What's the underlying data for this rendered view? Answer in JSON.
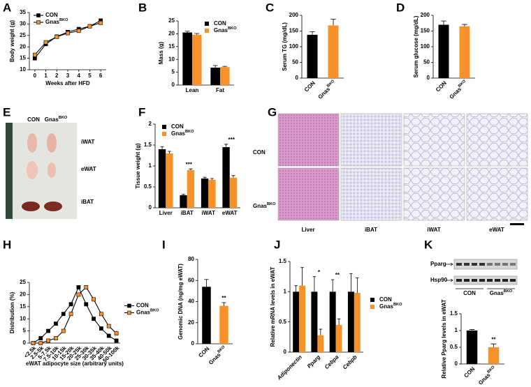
{
  "panel_letters": [
    "A",
    "B",
    "C",
    "D",
    "E",
    "F",
    "G",
    "H",
    "I",
    "J",
    "K"
  ],
  "chart_data": [
    {
      "type": "line",
      "x": [
        0,
        1,
        2,
        3,
        4,
        5,
        6
      ],
      "xlim": [
        -0.5,
        6.5
      ],
      "xticks": [
        0,
        1,
        2,
        3,
        4,
        5,
        6
      ],
      "xlabel": "Weeks after HFD",
      "ylabel": "Body weight (g)",
      "ylim": [
        10,
        35
      ],
      "yticks": [
        10,
        15,
        20,
        25,
        30,
        35
      ],
      "legend": "upper left",
      "series": [
        {
          "name": "CON",
          "color": "#000000",
          "values": [
            15,
            21.2,
            24.5,
            26.5,
            27.8,
            29,
            31.5
          ]
        },
        {
          "name": "GnasBKO",
          "color": "#f7922a",
          "values": [
            16.5,
            22,
            24.4,
            26,
            27,
            29,
            30.5
          ]
        }
      ]
    },
    {
      "type": "bar",
      "categories": [
        "Lean",
        "Fat"
      ],
      "ylabel": "Mass (g)",
      "ylim": [
        0,
        25
      ],
      "yticks": [
        0,
        5,
        10,
        15,
        20,
        25
      ],
      "legend": "upper right",
      "series": [
        {
          "name": "CON",
          "color": "#000000",
          "values": [
            20.5,
            6.8
          ],
          "errors": [
            0.5,
            0.8
          ]
        },
        {
          "name": "GnasBKO",
          "color": "#f7922a",
          "values": [
            19.6,
            7
          ],
          "errors": [
            0.5,
            0.3
          ]
        }
      ]
    },
    {
      "type": "bar",
      "categories": [
        "CON",
        "GnasBKO"
      ],
      "colors": [
        "#000000",
        "#f7922a"
      ],
      "values": [
        138,
        168
      ],
      "errors": [
        10,
        20
      ],
      "ylabel": "Serum TG (mg/dL)",
      "ylim": [
        0,
        200
      ],
      "yticks": [
        0,
        50,
        100,
        150,
        200
      ]
    },
    {
      "type": "bar",
      "categories": [
        "CON",
        "GnasBKO"
      ],
      "colors": [
        "#000000",
        "#f7922a"
      ],
      "values": [
        170,
        165
      ],
      "errors": [
        12,
        6
      ],
      "ylabel": "Serum glucose (mg/dL)",
      "ylim": [
        0,
        200
      ],
      "yticks": [
        0,
        50,
        100,
        150,
        200
      ]
    },
    {
      "type": "bar",
      "categories": [
        "Liver",
        "iBAT",
        "iWAT",
        "eWAT"
      ],
      "ylabel": "Tissue weight (g)",
      "ylim": [
        0,
        2
      ],
      "yticks": [
        0,
        0.5,
        1,
        1.5,
        2
      ],
      "legend": "upper left",
      "series": [
        {
          "name": "CON",
          "color": "#000000",
          "values": [
            1.4,
            0.3,
            0.7,
            1.45
          ],
          "errors": [
            0.06,
            0.02,
            0.03,
            0.07
          ]
        },
        {
          "name": "GnasBKO",
          "color": "#f7922a",
          "values": [
            1.3,
            0.9,
            0.67,
            0.72
          ],
          "errors": [
            0.05,
            0.03,
            0.03,
            0.05
          ]
        }
      ],
      "annotations": [
        {
          "text": "***",
          "category": "iBAT"
        },
        {
          "text": "***",
          "category": "eWAT"
        }
      ]
    },
    {
      "type": "line",
      "categories": [
        "<2.5k",
        "2.5-5k",
        "5-7.5k",
        "7.5-10k",
        "10-15k",
        "15-20k",
        "20-25k",
        "25-30k",
        "30-35k",
        "35-40k",
        "40-50k",
        "50-100k"
      ],
      "xlabel": "eWAT adipocyte size (arbitrary units)",
      "ylabel": "Distribution (%)",
      "ylim": [
        0,
        25
      ],
      "yticks": [
        0,
        5,
        10,
        15,
        20,
        25
      ],
      "legend": "right",
      "series": [
        {
          "name": "CON",
          "color": "#000000",
          "values": [
            0,
            2,
            5,
            8,
            12,
            16,
            23,
            16,
            10,
            6,
            3,
            1
          ]
        },
        {
          "name": "GnasBKO",
          "color": "#f7922a",
          "values": [
            0,
            0,
            1,
            2,
            5,
            12,
            20,
            23,
            18,
            12,
            7,
            4
          ]
        }
      ]
    },
    {
      "type": "bar",
      "categories": [
        "CON",
        "GnasBKO"
      ],
      "colors": [
        "#000000",
        "#f7922a"
      ],
      "values": [
        54,
        36
      ],
      "errors": [
        7,
        3
      ],
      "ylabel": "Genomic DNA (ng/mg eWAT)",
      "ylim": [
        0,
        80
      ],
      "yticks": [
        0,
        20,
        40,
        60,
        80
      ],
      "annotations": [
        {
          "text": "**",
          "category": "GnasBKO"
        }
      ]
    },
    {
      "type": "bar",
      "categories": [
        "Adiponectin",
        "Pparg",
        "Cebpa",
        "Cebpb"
      ],
      "ylabel": "Relative mRNA levels in eWAT",
      "ylim": [
        0,
        1.5
      ],
      "yticks": [
        0,
        0.5,
        1,
        1.5
      ],
      "legend": "right",
      "series": [
        {
          "name": "CON",
          "color": "#000000",
          "values": [
            1,
            1,
            1,
            1
          ],
          "errors": [
            0.1,
            0.25,
            0.2,
            0.3
          ]
        },
        {
          "name": "GnasBKO",
          "color": "#f7922a",
          "values": [
            1.1,
            0.28,
            0.45,
            0.98
          ],
          "errors": [
            0.3,
            0.1,
            0.1,
            0.25
          ]
        }
      ],
      "annotations": [
        {
          "text": "*",
          "category": "Pparg"
        },
        {
          "text": "**",
          "category": "Cebpa"
        }
      ]
    },
    {
      "type": "bar",
      "categories": [
        "CON",
        "GnasBKO"
      ],
      "colors": [
        "#000000",
        "#f7922a"
      ],
      "values": [
        1,
        0.5
      ],
      "errors": [
        0.03,
        0.1
      ],
      "ylabel": "Relative Pparg levels in eWAT",
      "ylim": [
        0,
        1.5
      ],
      "yticks": [
        0,
        0.5,
        1,
        1.5
      ],
      "annotations": [
        {
          "text": "**",
          "category": "GnasBKO"
        }
      ]
    }
  ],
  "photo_E": {
    "columns": [
      "CON",
      "GnasBKO"
    ],
    "rows": [
      "iWAT",
      "eWAT",
      "iBAT"
    ]
  },
  "histology_G": {
    "rows": [
      "CON",
      "GnasBKO"
    ],
    "columns": [
      "Liver",
      "iBAT",
      "iWAT",
      "eWAT"
    ]
  },
  "blot_K": {
    "bands": [
      "Pparg",
      "Hsp90"
    ],
    "groups": [
      "CON",
      "GnasBKO"
    ]
  }
}
